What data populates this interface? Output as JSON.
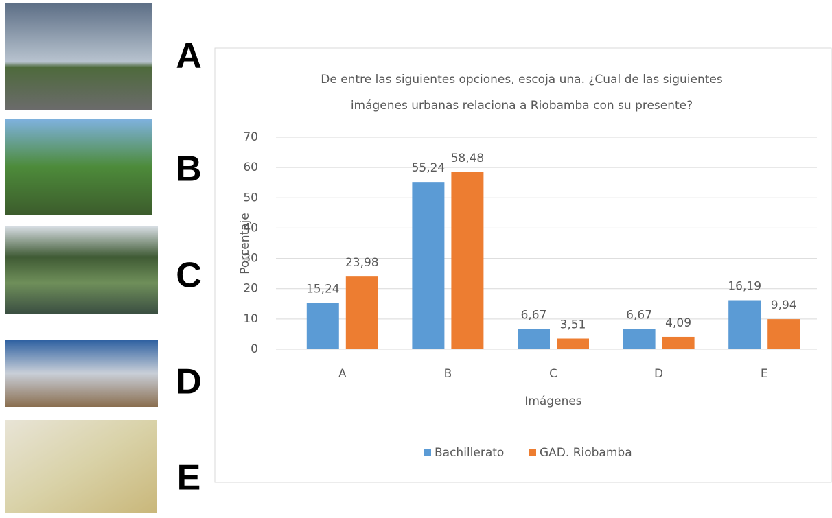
{
  "image_labels": [
    "A",
    "B",
    "C",
    "D",
    "E"
  ],
  "chart_data": {
    "type": "bar",
    "title": [
      "De entre las siguientes opciones, escoja una. ¿Cual de las siguientes",
      "imágenes urbanas relaciona a Riobamba con su presente?"
    ],
    "x_label": "Imágenes",
    "y_label": "Porcentaje",
    "categories": [
      "A",
      "B",
      "C",
      "D",
      "E"
    ],
    "series": [
      {
        "name": "Bachillerato",
        "color": "#5b9bd5",
        "values": [
          15.24,
          55.24,
          6.67,
          6.67,
          16.19
        ],
        "value_labels": [
          "15,24",
          "55,24",
          "6,67",
          "6,67",
          "16,19"
        ]
      },
      {
        "name": "GAD. Riobamba",
        "color": "#ed7d31",
        "values": [
          23.98,
          58.48,
          3.51,
          4.09,
          9.94
        ],
        "value_labels": [
          "23,98",
          "58,48",
          "3,51",
          "4,09",
          "9,94"
        ]
      }
    ],
    "ylim": [
      0,
      70
    ],
    "yticks": [
      0,
      10,
      20,
      30,
      40,
      50,
      60,
      70
    ],
    "grid": true,
    "legend": "bottom"
  }
}
